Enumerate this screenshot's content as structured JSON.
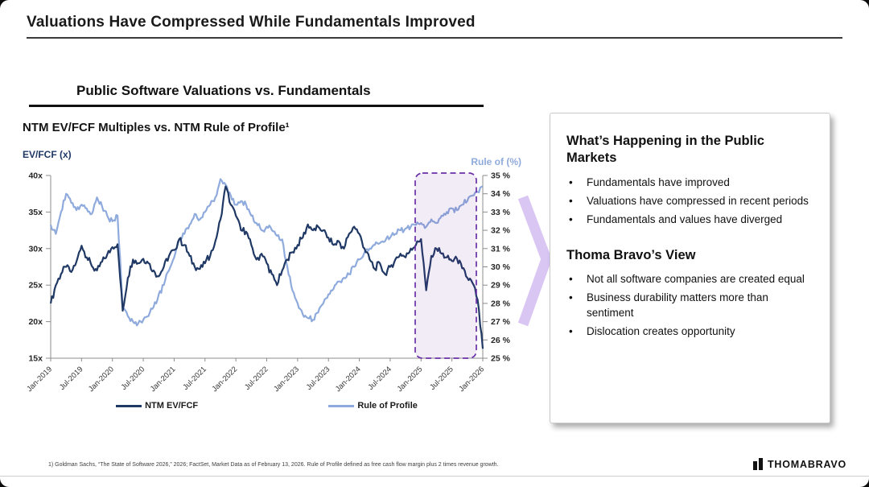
{
  "slide": {
    "title": "Valuations Have Compressed While Fundamentals Improved",
    "section_title": "Public Software Valuations vs. Fundamentals",
    "footnote": "1) Goldman Sachs, “The State of Software 2026,” 2026; FactSet, Market Data as of February 13, 2026. Rule of Profile defined as free cash flow margin plus 2 times revenue growth.",
    "logo_text": "THOMABRAVO"
  },
  "panel": {
    "heading_markets": "What’s Happening in the Public Markets",
    "bullets_markets": [
      "Fundamentals have improved",
      "Valuations have compressed in recent periods",
      "Fundamentals and values have diverged"
    ],
    "heading_view": "Thoma Bravo’s View",
    "bullets_view": [
      "Not all software companies are created equal",
      "Business durability matters more than sentiment",
      "Dislocation creates opportunity"
    ]
  },
  "chart_data": {
    "type": "line",
    "title": "NTM EV/FCF Multiples vs. NTM Rule of Profile¹",
    "left_axis": {
      "label": "EV/FCF (x)",
      "tick_labels": [
        "40x",
        "35x",
        "30x",
        "25x",
        "20x",
        "15x"
      ],
      "range": [
        15,
        40
      ]
    },
    "right_axis": {
      "label": "Rule of (%)",
      "tick_labels": [
        "35 %",
        "34 %",
        "33 %",
        "32 %",
        "31 %",
        "30 %",
        "29 %",
        "28 %",
        "27 %",
        "26 %",
        "25 %"
      ],
      "range": [
        25,
        35
      ]
    },
    "x_tick_labels": [
      "Jan-2019",
      "Jul-2019",
      "Jan-2020",
      "Jul-2020",
      "Jan-2021",
      "Jul-2021",
      "Jan-2022",
      "Jul-2022",
      "Jan-2023",
      "Jul-2023",
      "Jan-2024",
      "Jul-2024",
      "Jan-2025",
      "Jul-2025",
      "Jan-2026"
    ],
    "x_frequency": "monthly, Jan-2019 through Jan-2026",
    "grid": false,
    "legend_position": "bottom",
    "series": [
      {
        "name": "NTM EV/FCF",
        "axis": "left",
        "unit": "x",
        "color": "#1F3864",
        "values": [
          22.5,
          25.0,
          26.5,
          27.5,
          26.8,
          28.2,
          30.4,
          28.8,
          27.6,
          27.0,
          28.2,
          29.2,
          30.2,
          30.6,
          21.5,
          26.0,
          28.5,
          28.0,
          28.6,
          28.0,
          27.0,
          26.2,
          27.5,
          29.0,
          29.8,
          31.3,
          30.5,
          29.0,
          27.5,
          27.2,
          28.0,
          29.0,
          31.0,
          34.0,
          38.5,
          36.0,
          34.5,
          32.5,
          32.3,
          30.5,
          28.5,
          29.3,
          28.0,
          26.5,
          25.0,
          27.0,
          28.5,
          29.5,
          30.5,
          31.5,
          33.3,
          32.5,
          33.0,
          32.5,
          31.5,
          30.5,
          31.0,
          30.0,
          32.0,
          33.0,
          32.0,
          30.0,
          28.5,
          27.2,
          28.0,
          26.5,
          27.5,
          28.5,
          29.3,
          28.8,
          30.0,
          30.5,
          31.3,
          24.3,
          29.0,
          30.0,
          29.3,
          28.8,
          28.3,
          28.6,
          27.3,
          26.0,
          25.3,
          23.0,
          16.3
        ]
      },
      {
        "name": "Rule of Profile",
        "axis": "right",
        "unit": "%",
        "color": "#8FAADC",
        "values": [
          32.3,
          31.8,
          33.0,
          34.0,
          33.5,
          33.1,
          33.4,
          33.2,
          32.9,
          33.8,
          33.3,
          32.8,
          32.5,
          32.8,
          27.8,
          27.3,
          27.0,
          26.9,
          27.1,
          27.3,
          27.8,
          28.5,
          29.0,
          29.8,
          30.5,
          31.5,
          31.8,
          32.3,
          32.9,
          32.6,
          33.0,
          33.4,
          33.8,
          34.8,
          34.5,
          33.9,
          33.4,
          33.6,
          33.4,
          32.8,
          32.4,
          32.0,
          32.2,
          32.0,
          31.7,
          31.5,
          30.0,
          28.7,
          28.0,
          27.4,
          27.2,
          27.1,
          27.5,
          28.0,
          28.5,
          28.8,
          29.2,
          29.4,
          29.6,
          30.0,
          30.4,
          30.8,
          31.0,
          31.2,
          31.3,
          31.4,
          31.6,
          31.8,
          32.0,
          32.1,
          32.2,
          32.3,
          32.4,
          32.2,
          32.6,
          32.4,
          32.8,
          33.0,
          33.2,
          33.1,
          33.4,
          33.6,
          33.9,
          34.1,
          34.4
        ]
      }
    ],
    "highlight_region": {
      "from": "Jan-2025",
      "to": "Jan-2026",
      "border_color": "#6A2FA8",
      "fill_color": "rgba(112,48,160,0.09)",
      "style": "dashed rounded rectangle"
    },
    "annotation_arrow_color": "#D9C6F3"
  },
  "colors": {
    "navy": "#1F3864",
    "light_blue": "#8FAADC",
    "purple_dash": "#6A2FA8",
    "lavender_fill": "rgba(112,48,160,0.09)",
    "chevron": "#D9C6F3",
    "axis_gray": "#8c8c8c"
  }
}
